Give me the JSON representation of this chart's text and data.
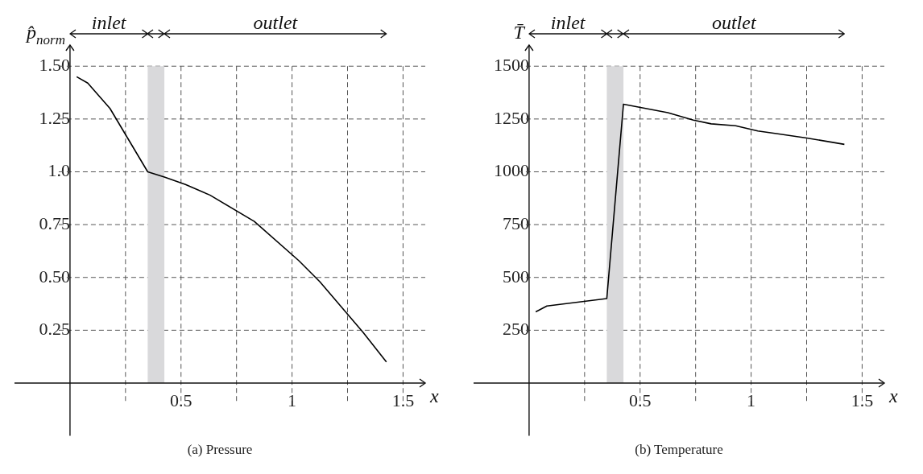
{
  "chart_data": [
    {
      "type": "line",
      "title": "(a) Pressure",
      "ylabel": "p̂$_{norm}$",
      "xlabel": "x",
      "annotations": [
        "inlet",
        "outlet"
      ],
      "x": [
        0.03,
        0.08,
        0.18,
        0.35,
        0.425,
        0.52,
        0.63,
        0.83,
        1.03,
        1.125,
        1.32,
        1.425
      ],
      "series": [
        {
          "color": "#000000",
          "values": [
            1.45,
            1.42,
            1.3,
            1.0,
            0.975,
            0.94,
            0.89,
            0.765,
            0.58,
            0.48,
            0.24,
            0.1
          ]
        }
      ],
      "xlim": [
        -0.25,
        1.6
      ],
      "ylim": [
        -0.25,
        1.6
      ],
      "xticks": [
        {
          "value": 0.25,
          "label": null
        },
        0.5,
        {
          "value": 0.75,
          "label": null
        },
        1,
        {
          "value": 1.25,
          "label": null
        },
        1.5
      ],
      "yticks": [
        0.25,
        {
          "value": 0.5,
          "label": "0.50"
        },
        0.75,
        {
          "value": 1,
          "label": "1.0"
        },
        1.25,
        {
          "value": 1.5,
          "label": "1.50"
        }
      ],
      "grid": true,
      "bands": [
        {
          "axis": "x",
          "from": 0.35,
          "to": 0.425,
          "color": "#d9d9db"
        }
      ]
    },
    {
      "type": "line",
      "title": "(b) Temperature",
      "ylabel": "T̄",
      "xlabel": "x",
      "annotations": [
        "inlet",
        "outlet"
      ],
      "x": [
        0.03,
        0.08,
        0.35,
        0.425,
        0.625,
        0.74,
        0.82,
        0.93,
        1.03,
        1.12,
        1.25,
        1.42
      ],
      "series": [
        {
          "color": "#000000",
          "values": [
            337,
            365,
            400,
            1320,
            1280,
            1245,
            1227,
            1218,
            1193,
            1180,
            1160,
            1130
          ]
        }
      ],
      "xlim": [
        -0.25,
        1.6
      ],
      "ylim": [
        -250,
        1600
      ],
      "xticks": [
        {
          "value": 0.25,
          "label": null
        },
        0.5,
        {
          "value": 0.75,
          "label": null
        },
        1,
        {
          "value": 1.25,
          "label": null
        },
        1.5
      ],
      "yticks": [
        250,
        500,
        750,
        1000,
        1250,
        1500
      ],
      "grid": true,
      "bands": [
        {
          "axis": "x",
          "from": 0.35,
          "to": 0.425,
          "color": "#d9d9db"
        }
      ]
    }
  ]
}
